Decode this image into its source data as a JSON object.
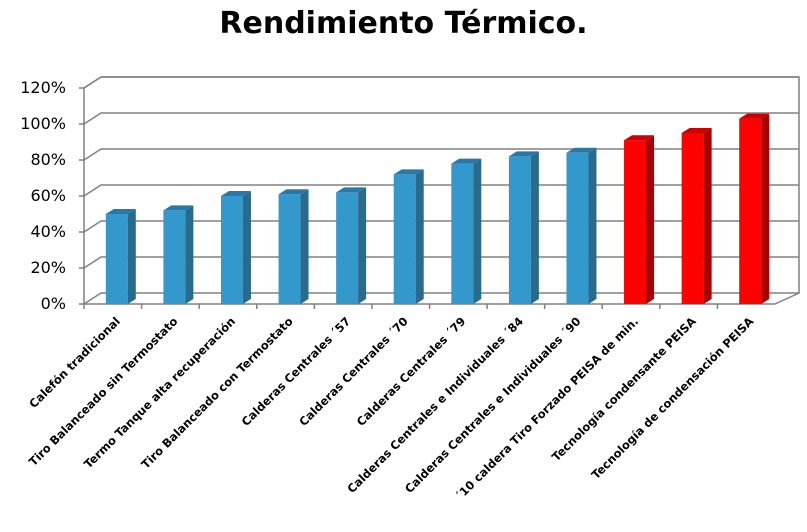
{
  "chart_data": {
    "type": "bar",
    "title": "Rendimiento Térmico.",
    "xlabel": "",
    "ylabel": "",
    "ylim": [
      0,
      1.2
    ],
    "yticks": [
      {
        "value": 0,
        "label": "0%"
      },
      {
        "value": 0.2,
        "label": "20%"
      },
      {
        "value": 0.4,
        "label": "40%"
      },
      {
        "value": 0.6,
        "label": "60%"
      },
      {
        "value": 0.8,
        "label": "80%"
      },
      {
        "value": 1.0,
        "label": "100%"
      },
      {
        "value": 1.2,
        "label": "120%"
      }
    ],
    "grid": true,
    "legend": "none",
    "categories": [
      "Calefón tradicional",
      "Tiro Balanceado sin Termostato",
      "Termo Tanque alta recuperación",
      "Tiro Balanceado con  Termostato",
      "Calderas Centrales ´57",
      "Calderas Centrales ´70",
      "Calderas Centrales ´79",
      "Calderas Centrales e Individuales ´84",
      "Calderas Centrales e Individuales ´90",
      "´10 caldera Tiro Forzado PEISA de min.",
      "Tecnología condensante PEISA",
      "Tecnología de condensación PEISA"
    ],
    "values": [
      0.5,
      0.52,
      0.6,
      0.61,
      0.62,
      0.72,
      0.78,
      0.82,
      0.84,
      0.91,
      0.95,
      1.03
    ],
    "bar_colors": [
      "#3399cc",
      "#3399cc",
      "#3399cc",
      "#3399cc",
      "#3399cc",
      "#3399cc",
      "#3399cc",
      "#3399cc",
      "#3399cc",
      "#ff0000",
      "#ff0000",
      "#ff0000"
    ],
    "bar_side_colors": [
      "#2a6a8a",
      "#2a6a8a",
      "#2a6a8a",
      "#2a6a8a",
      "#2a6a8a",
      "#2a6a8a",
      "#2a6a8a",
      "#2a6a8a",
      "#2a6a8a",
      "#a80000",
      "#a80000",
      "#a80000"
    ],
    "bar_top_colors": [
      "#2b78a8",
      "#2b78a8",
      "#2b78a8",
      "#2b78a8",
      "#2b78a8",
      "#2b78a8",
      "#2b78a8",
      "#2b78a8",
      "#2b78a8",
      "#cc0000",
      "#cc0000",
      "#cc0000"
    ]
  }
}
